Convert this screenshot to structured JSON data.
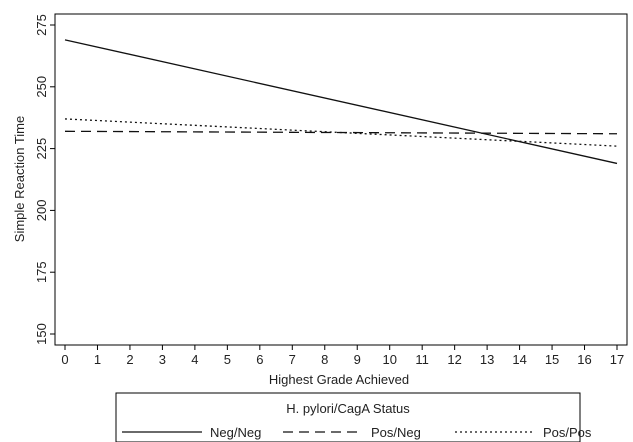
{
  "chart_data": {
    "type": "line",
    "xlabel": "Highest Grade Achieved",
    "ylabel": "Simple Reaction Time",
    "xlim": [
      0,
      17
    ],
    "ylim": [
      150,
      275
    ],
    "xticks": [
      0,
      1,
      2,
      3,
      4,
      5,
      6,
      7,
      8,
      9,
      10,
      11,
      12,
      13,
      14,
      15,
      16,
      17
    ],
    "yticks": [
      150,
      175,
      200,
      225,
      250,
      275
    ],
    "grid": false,
    "legend": {
      "title": "H. pylori/CagA Status",
      "placement": "bottom"
    },
    "series": [
      {
        "name": "Neg/Neg",
        "style": "solid",
        "x": [
          0,
          17
        ],
        "values": [
          269,
          219
        ]
      },
      {
        "name": "Pos/Neg",
        "style": "dashed",
        "x": [
          0,
          17
        ],
        "values": [
          232,
          231
        ]
      },
      {
        "name": "Pos/Pos",
        "style": "dotted",
        "x": [
          0,
          17
        ],
        "values": [
          237,
          226
        ]
      }
    ]
  }
}
